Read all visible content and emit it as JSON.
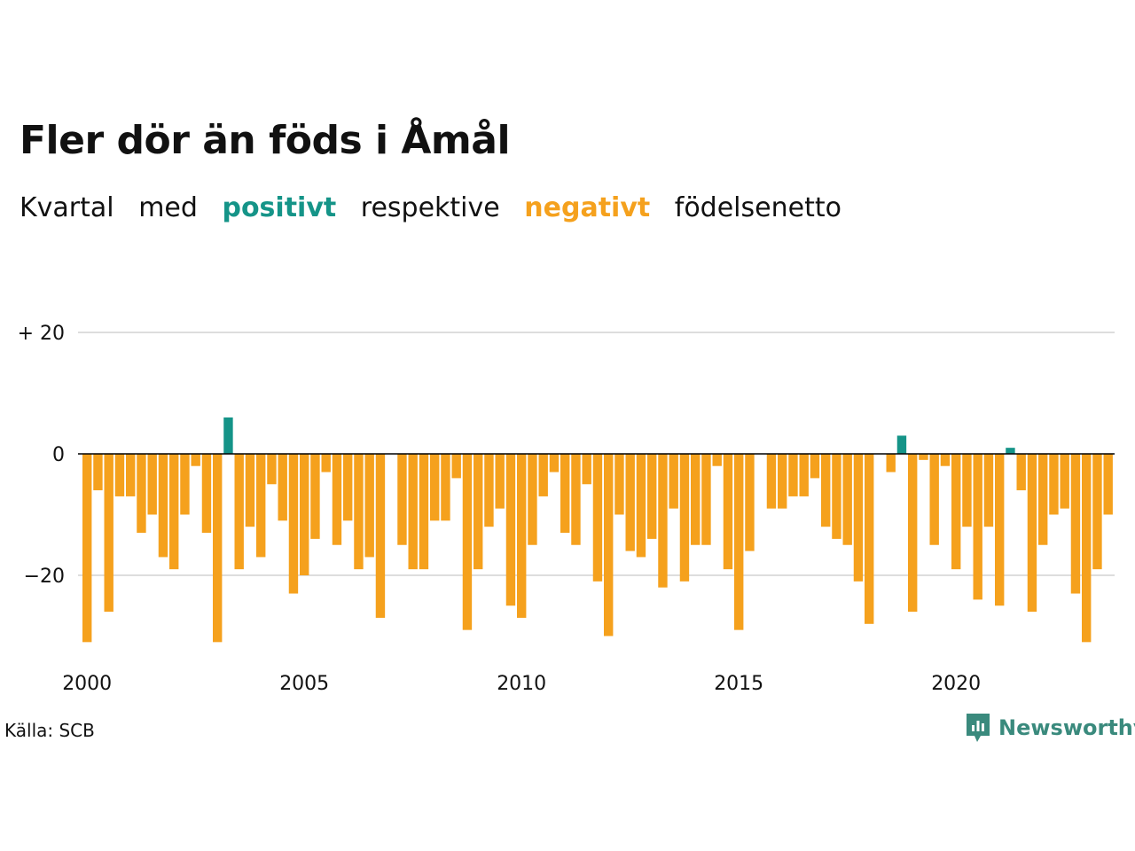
{
  "title": "Fler dör än föds i Åmål",
  "subtitle": {
    "w1": "Kvartal",
    "w2": "med",
    "positive": "positivt",
    "w3": "respektive",
    "negative": "negativt",
    "w4": "födelsenetto"
  },
  "source": "Källa: SCB",
  "brand": {
    "name": "Newsworthy",
    "icon": "newsworthy-logo-icon"
  },
  "colors": {
    "positive": "#159488",
    "negative": "#f5a11d",
    "grid": "#dddddd",
    "zero": "#000000"
  },
  "chart_data": {
    "type": "bar",
    "frequency": "quarterly",
    "x_start": "2000 Q1",
    "ylim": [
      -31,
      20
    ],
    "yticks": [
      20,
      0,
      -20
    ],
    "ytick_labels": [
      "+ 20",
      "0",
      "−20"
    ],
    "xticks": [
      "2000",
      "2005",
      "2010",
      "2015",
      "2020"
    ],
    "grid": true,
    "values": [
      -31,
      -6,
      -26,
      -7,
      -7,
      -13,
      -10,
      -17,
      -19,
      -10,
      -2,
      -13,
      -31,
      6,
      -19,
      -12,
      -17,
      -5,
      -11,
      -23,
      -20,
      -14,
      -3,
      -15,
      -11,
      -19,
      -17,
      -27,
      0,
      -15,
      -19,
      -19,
      -11,
      -11,
      -4,
      -29,
      -19,
      -12,
      -9,
      -25,
      -27,
      -15,
      -7,
      -3,
      -13,
      -15,
      -5,
      -21,
      -30,
      -10,
      -16,
      -17,
      -14,
      -22,
      -9,
      -21,
      -15,
      -15,
      -2,
      -19,
      -29,
      -16,
      0,
      -9,
      -9,
      -7,
      -7,
      -4,
      -12,
      -14,
      -15,
      -21,
      -28,
      0,
      -3,
      3,
      -26,
      -1,
      -15,
      -2,
      -19,
      -12,
      -24,
      -12,
      -25,
      1,
      -6,
      -26,
      -15,
      -10,
      -9,
      -23,
      -31,
      -19,
      -10
    ]
  }
}
